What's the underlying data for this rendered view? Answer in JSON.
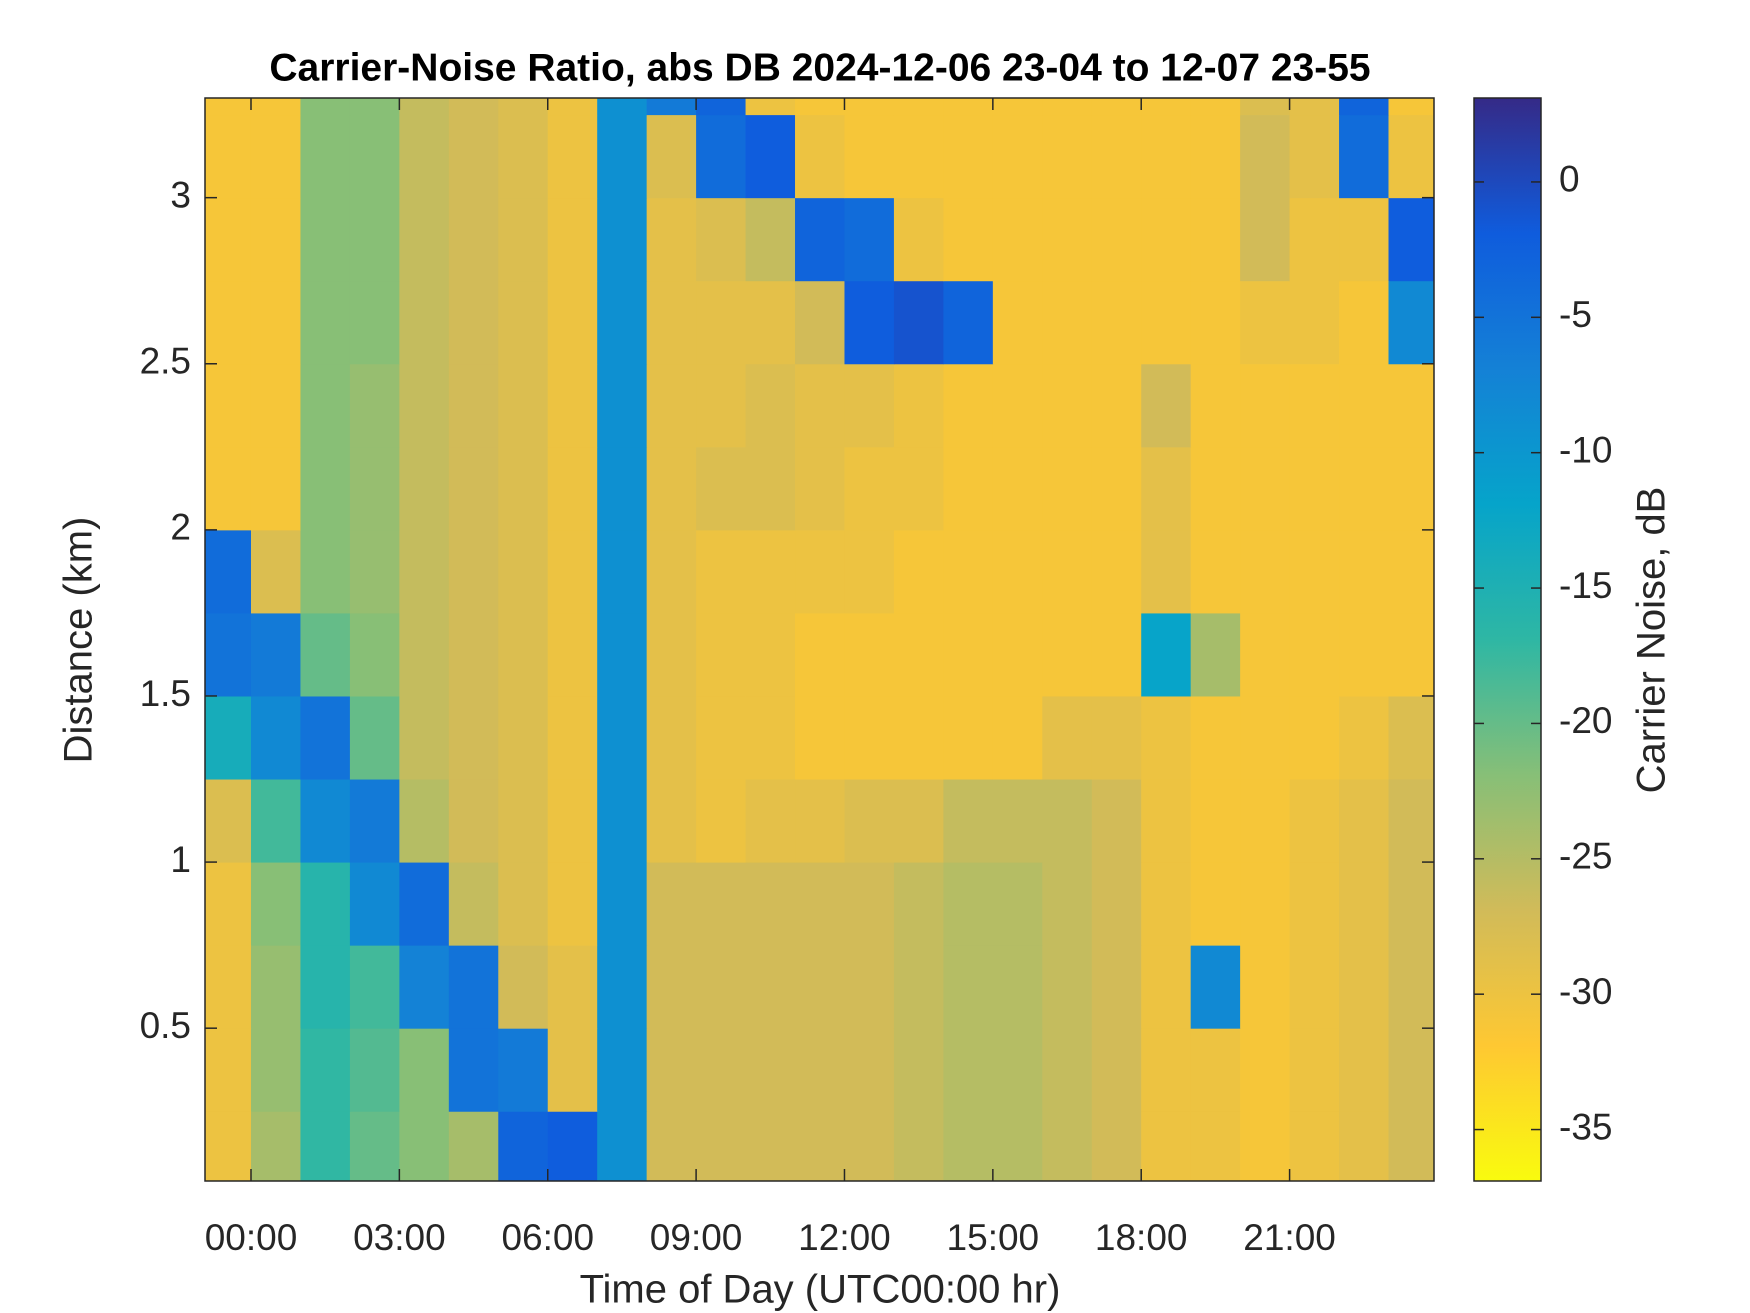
{
  "chart_data": {
    "type": "heatmap",
    "title": "Carrier-Noise Ratio, abs DB 2024-12-06 23-04 to 12-07 23-55",
    "x_label": "Time of Day (UTC00:00 hr)",
    "y_label": "Distance (km)",
    "colorbar_label": "Carrier Noise, dB",
    "xlim": [
      -0.93,
      23.92
    ],
    "xticks": [
      {
        "value": 0,
        "label": "00:00"
      },
      {
        "value": 3,
        "label": "03:00"
      },
      {
        "value": 6,
        "label": "06:00"
      },
      {
        "value": 9,
        "label": "09:00"
      },
      {
        "value": 12,
        "label": "12:00"
      },
      {
        "value": 15,
        "label": "15:00"
      },
      {
        "value": 18,
        "label": "18:00"
      },
      {
        "value": 21,
        "label": "21:00"
      }
    ],
    "ylim": [
      0.04,
      3.3
    ],
    "yticks": [
      0.5,
      1,
      1.5,
      2,
      2.5,
      3
    ],
    "clim": [
      -36.9,
      3.1
    ],
    "cticks": [
      0,
      -5,
      -10,
      -15,
      -20,
      -25,
      -30,
      -35
    ],
    "colormap": [
      "#F9FB0E",
      "#FEC832",
      "#D1BB59",
      "#87BF77",
      "#2EB7A4",
      "#06A4CA",
      "#1481D6",
      "#0F5CDD",
      "#352A87"
    ],
    "x": [
      -0.5,
      0.5,
      1.5,
      2.5,
      3.5,
      4.5,
      5.5,
      6.5,
      7.5,
      8.5,
      9.5,
      10.5,
      11.5,
      12.5,
      13.5,
      14.5,
      15.5,
      16.5,
      17.5,
      18.5,
      19.5,
      20.5,
      21.5,
      22.5,
      23.5
    ],
    "y": [
      0.125,
      0.375,
      0.625,
      0.875,
      1.125,
      1.375,
      1.625,
      1.875,
      2.125,
      2.375,
      2.625,
      2.875,
      3.125,
      3.375
    ],
    "z": [
      [
        -30,
        -24,
        -17,
        -20,
        -22,
        -24,
        -3,
        -2,
        -9,
        -27,
        -27,
        -27,
        -27,
        -27,
        -26,
        -25,
        -25,
        -26,
        -27,
        -30,
        -30,
        -31,
        -30,
        -29,
        -27
      ],
      [
        -30,
        -23,
        -17,
        -19,
        -22,
        -5,
        -6,
        -29,
        -9,
        -27,
        -27,
        -27,
        -27,
        -27,
        -26,
        -25,
        -25,
        -26,
        -27,
        -30,
        -30,
        -31,
        -30,
        -29,
        -27
      ],
      [
        -30,
        -23,
        -16,
        -18,
        -7,
        -5,
        -27,
        -29,
        -9,
        -27,
        -27,
        -27,
        -27,
        -27,
        -26,
        -25,
        -25,
        -26,
        -27,
        -30,
        -8,
        -31,
        -30,
        -29,
        -27
      ],
      [
        -30,
        -22,
        -16,
        -8,
        -4,
        -26,
        -28,
        -30,
        -9,
        -27,
        -27,
        -27,
        -27,
        -27,
        -26,
        -25,
        -25,
        -26,
        -27,
        -30,
        -31,
        -31,
        -30,
        -29,
        -27
      ],
      [
        -28,
        -18,
        -8,
        -6,
        -25,
        -27,
        -28,
        -30,
        -9,
        -29,
        -30,
        -29,
        -29,
        -28,
        -28,
        -26,
        -26,
        -26,
        -27,
        -30,
        -31,
        -31,
        -30,
        -29,
        -27
      ],
      [
        -14,
        -8,
        -5,
        -20,
        -26,
        -27,
        -28,
        -30,
        -9,
        -29,
        -30,
        -30,
        -31,
        -31,
        -31,
        -31,
        -31,
        -29,
        -29,
        -30,
        -31,
        -31,
        -31,
        -30,
        -28
      ],
      [
        -5,
        -6,
        -20,
        -22,
        -26,
        -27,
        -28,
        -30,
        -9,
        -29,
        -30,
        -30,
        -31,
        -31,
        -31,
        -31,
        -31,
        -31,
        -31,
        -12,
        -24,
        -31,
        -31,
        -31,
        -31
      ],
      [
        -4,
        -28,
        -22,
        -23,
        -26,
        -27,
        -28,
        -30,
        -9,
        -29,
        -30,
        -30,
        -30,
        -30,
        -31,
        -31,
        -31,
        -31,
        -31,
        -29,
        -31,
        -31,
        -31,
        -31,
        -31
      ],
      [
        -31,
        -31,
        -22,
        -23,
        -26,
        -27,
        -28,
        -30,
        -9,
        -29,
        -28,
        -28,
        -29,
        -30,
        -30,
        -31,
        -31,
        -31,
        -31,
        -29,
        -31,
        -31,
        -31,
        -31,
        -31
      ],
      [
        -31,
        -31,
        -22,
        -23,
        -26,
        -27,
        -28,
        -30,
        -9,
        -29,
        -29,
        -28,
        -29,
        -29,
        -30,
        -31,
        -31,
        -31,
        -31,
        -27,
        -31,
        -31,
        -31,
        -31,
        -31
      ],
      [
        -31,
        -31,
        -22,
        -22,
        -26,
        -27,
        -28,
        -30,
        -9,
        -29,
        -29,
        -29,
        -27,
        -2,
        -1,
        -3,
        -31,
        -31,
        -31,
        -31,
        -31,
        -30,
        -30,
        -31,
        -8
      ],
      [
        -31,
        -31,
        -22,
        -22,
        -26,
        -27,
        -28,
        -30,
        -9,
        -29,
        -28,
        -26,
        -3,
        -4,
        -30,
        -31,
        -31,
        -31,
        -31,
        -31,
        -31,
        -27,
        -30,
        -30,
        -2
      ],
      [
        -31,
        -31,
        -22,
        -22,
        -26,
        -27,
        -28,
        -30,
        -9,
        -28,
        -4,
        -2,
        -30,
        -31,
        -31,
        -31,
        -31,
        -31,
        -31,
        -31,
        -31,
        -27,
        -29,
        -4,
        -30
      ],
      [
        -31,
        -31,
        -22,
        -22,
        -26,
        -27,
        -28,
        -30,
        -9,
        -6,
        -3,
        -30,
        -31,
        -31,
        -31,
        -31,
        -31,
        -31,
        -31,
        -31,
        -31,
        -28,
        -29,
        -3,
        -31
      ]
    ]
  }
}
